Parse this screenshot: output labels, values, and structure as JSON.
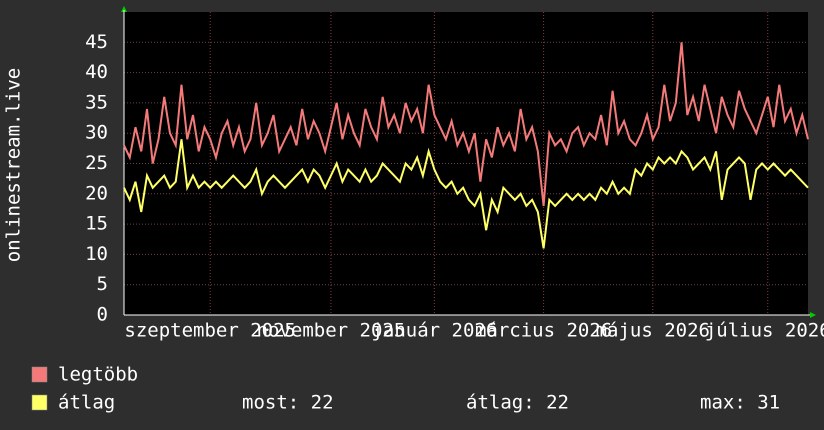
{
  "chart_data": {
    "type": "line",
    "y_label": "onlinestream.live",
    "ylim": [
      0,
      50
    ],
    "yticks": [
      0,
      5,
      10,
      15,
      20,
      25,
      30,
      35,
      40,
      45
    ],
    "xlim": [
      0,
      119
    ],
    "xticks": [
      {
        "value": 15,
        "label": "szeptember 2025"
      },
      {
        "value": 36,
        "label": "november 2025"
      },
      {
        "value": 54,
        "label": "január 2026"
      },
      {
        "value": 73,
        "label": "március 2026"
      },
      {
        "value": 92,
        "label": "május 2026"
      },
      {
        "value": 112,
        "label": "július 2026"
      }
    ],
    "grid": true,
    "series": [
      {
        "name": "legtöbb",
        "color": "#f47a7a",
        "values": [
          28,
          26,
          31,
          27,
          34,
          25,
          29,
          36,
          30,
          28,
          38,
          29,
          33,
          27,
          31,
          29,
          26,
          30,
          32,
          28,
          31,
          27,
          29,
          35,
          28,
          30,
          33,
          27,
          29,
          31,
          28,
          34,
          29,
          32,
          30,
          27,
          31,
          35,
          29,
          33,
          30,
          28,
          34,
          31,
          29,
          36,
          31,
          33,
          30,
          35,
          32,
          34,
          30,
          38,
          33,
          31,
          29,
          32,
          28,
          30,
          27,
          30,
          22,
          29,
          26,
          31,
          28,
          30,
          27,
          34,
          29,
          31,
          27,
          18,
          30,
          28,
          29,
          27,
          30,
          31,
          28,
          30,
          29,
          33,
          28,
          37,
          30,
          32,
          29,
          28,
          30,
          33,
          29,
          31,
          38,
          32,
          35,
          45,
          33,
          36,
          32,
          38,
          34,
          30,
          36,
          33,
          31,
          37,
          34,
          32,
          30,
          33,
          36,
          31,
          38,
          32,
          34,
          30,
          33,
          29
        ]
      },
      {
        "name": "átlag",
        "color": "#ffff66",
        "values": [
          21,
          19,
          22,
          17,
          23,
          21,
          22,
          23,
          21,
          22,
          29,
          21,
          23,
          21,
          22,
          21,
          22,
          21,
          22,
          23,
          22,
          21,
          22,
          24,
          20,
          22,
          23,
          22,
          21,
          22,
          23,
          24,
          22,
          24,
          23,
          21,
          23,
          25,
          22,
          24,
          23,
          22,
          24,
          22,
          23,
          25,
          24,
          23,
          22,
          25,
          24,
          26,
          23,
          27,
          24,
          22,
          21,
          22,
          20,
          21,
          19,
          18,
          20,
          14,
          19,
          17,
          21,
          20,
          19,
          20,
          18,
          19,
          17,
          11,
          19,
          18,
          19,
          20,
          19,
          20,
          19,
          20,
          19,
          21,
          20,
          22,
          20,
          21,
          20,
          24,
          23,
          25,
          24,
          26,
          25,
          26,
          25,
          27,
          26,
          24,
          25,
          26,
          24,
          27,
          19,
          24,
          25,
          26,
          25,
          19,
          24,
          25,
          24,
          25,
          24,
          23,
          24,
          23,
          22,
          21
        ]
      }
    ],
    "stats": [
      "most: 22",
      "átlag: 22",
      "max: 31"
    ]
  }
}
